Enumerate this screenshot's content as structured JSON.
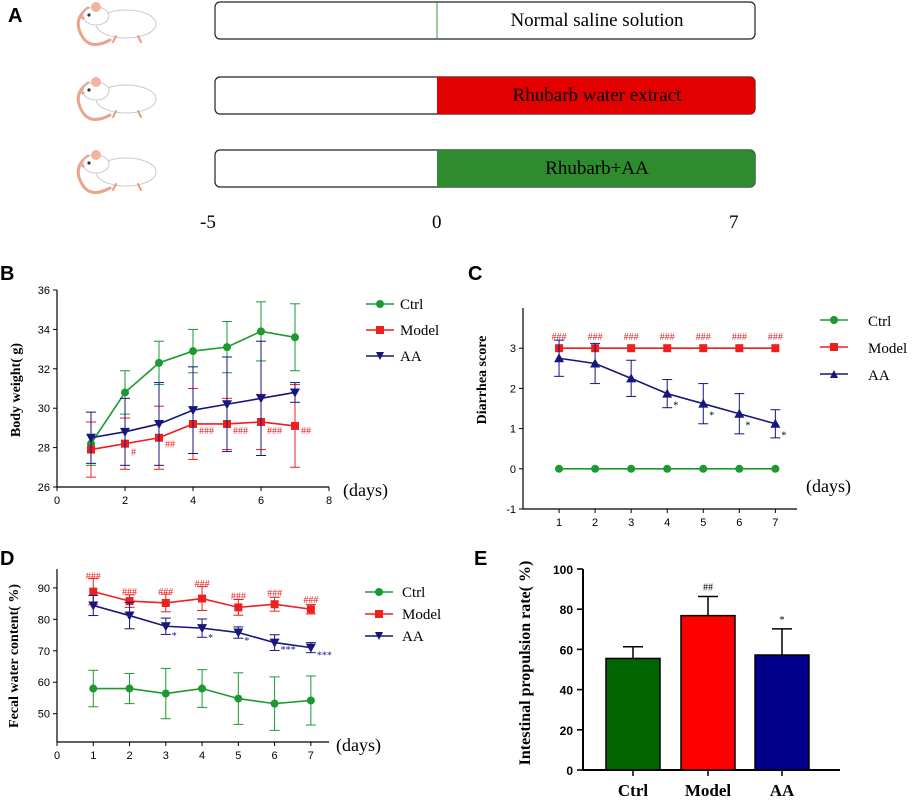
{
  "colors": {
    "ctrl": "#1a9a31",
    "model": "#ee1f1f",
    "aa": "#16167e",
    "barCtrl": "#006400",
    "barModel": "#ff0000",
    "barAA": "#00008b",
    "boxRed": "#e20000",
    "boxGreen": "#2e8b2e"
  },
  "panelA": {
    "label": "A",
    "treatments": [
      "Normal saline solution",
      "Rhubarb water extract",
      "Rhubarb+AA"
    ],
    "timeline": [
      -5,
      0,
      7
    ],
    "timeline_labels": [
      "-5",
      "0",
      "7"
    ],
    "mouse_icon": "mouse-icon"
  },
  "panelB": {
    "label": "B",
    "xunit": "(days)",
    "legend": [
      "Ctrl",
      "Model",
      "AA"
    ]
  },
  "panelC": {
    "label": "C",
    "xunit": "(days)",
    "legend": [
      "Ctrl",
      "Model",
      "AA"
    ]
  },
  "panelD": {
    "label": "D",
    "xunit": "(days)",
    "legend": [
      "Ctrl",
      "Model",
      "AA"
    ]
  },
  "panelE": {
    "label": "E"
  },
  "chart_data": [
    {
      "id": "B",
      "type": "line",
      "xlabel": "",
      "ylabel": "Body weight( g)",
      "xlim": [
        0,
        8
      ],
      "ylim": [
        26,
        36
      ],
      "xticks": [
        0,
        2,
        4,
        6,
        8
      ],
      "yticks": [
        26,
        28,
        30,
        32,
        34,
        36
      ],
      "x": [
        1,
        2,
        3,
        4,
        5,
        6,
        7
      ],
      "series": [
        {
          "name": "Ctrl",
          "values": [
            28.2,
            30.8,
            32.3,
            32.9,
            33.1,
            33.9,
            33.6
          ],
          "errors": [
            1.1,
            1.1,
            1.1,
            1.1,
            1.3,
            1.5,
            1.7
          ],
          "marker": "circle"
        },
        {
          "name": "Model",
          "values": [
            27.9,
            28.2,
            28.5,
            29.2,
            29.2,
            29.3,
            29.1
          ],
          "errors": [
            1.4,
            1.3,
            1.6,
            1.8,
            1.3,
            1.4,
            2.1
          ],
          "marker": "square"
        },
        {
          "name": "AA",
          "values": [
            28.5,
            28.8,
            29.2,
            29.9,
            30.2,
            30.5,
            30.8
          ],
          "errors": [
            1.3,
            1.7,
            2.1,
            2.2,
            2.4,
            2.9,
            0.5
          ],
          "marker": "triangle-down"
        }
      ],
      "annotations": [
        {
          "x": 2,
          "y": 27.8,
          "text": "#",
          "series": "Model"
        },
        {
          "x": 3,
          "y": 28.2,
          "text": "##",
          "series": "Model"
        },
        {
          "x": 4,
          "y": 28.9,
          "text": "###",
          "series": "Model"
        },
        {
          "x": 5,
          "y": 28.9,
          "text": "###",
          "series": "Model"
        },
        {
          "x": 6,
          "y": 28.9,
          "text": "###",
          "series": "Model"
        },
        {
          "x": 7,
          "y": 28.9,
          "text": "##",
          "series": "Model"
        }
      ]
    },
    {
      "id": "C",
      "type": "line",
      "xlabel": "",
      "ylabel": "Diarrhea score",
      "xlim": [
        0,
        7.6
      ],
      "ylim": [
        -1,
        4
      ],
      "xticks": [
        1,
        2,
        3,
        4,
        5,
        6,
        7
      ],
      "yticks": [
        -1,
        0,
        1,
        2,
        3
      ],
      "x": [
        1,
        2,
        3,
        4,
        5,
        6,
        7
      ],
      "series": [
        {
          "name": "Ctrl",
          "values": [
            0,
            0,
            0,
            0,
            0,
            0,
            0
          ],
          "errors": [
            0,
            0,
            0,
            0,
            0,
            0,
            0
          ],
          "marker": "circle"
        },
        {
          "name": "Model",
          "values": [
            3,
            3,
            3,
            3,
            3,
            3,
            3
          ],
          "errors": [
            0,
            0,
            0,
            0,
            0,
            0,
            0
          ],
          "marker": "square"
        },
        {
          "name": "AA",
          "values": [
            2.75,
            2.62,
            2.25,
            1.87,
            1.62,
            1.37,
            1.12
          ],
          "errors": [
            0.45,
            0.5,
            0.45,
            0.35,
            0.5,
            0.5,
            0.35
          ],
          "marker": "triangle-up"
        }
      ],
      "annotations": [
        {
          "x": 1,
          "y": 3.3,
          "text": "###",
          "series": "Model"
        },
        {
          "x": 2,
          "y": 3.3,
          "text": "###",
          "series": "Model"
        },
        {
          "x": 3,
          "y": 3.3,
          "text": "###",
          "series": "Model"
        },
        {
          "x": 4,
          "y": 3.3,
          "text": "###",
          "series": "Model"
        },
        {
          "x": 5,
          "y": 3.3,
          "text": "###",
          "series": "Model"
        },
        {
          "x": 6,
          "y": 3.3,
          "text": "###",
          "series": "Model"
        },
        {
          "x": 7,
          "y": 3.3,
          "text": "###",
          "series": "Model"
        },
        {
          "x": 4,
          "y": 1.6,
          "text": "*",
          "series": "AA"
        },
        {
          "x": 5,
          "y": 1.35,
          "text": "*",
          "series": "AA"
        },
        {
          "x": 6,
          "y": 1.1,
          "text": "*",
          "series": "AA"
        },
        {
          "x": 7,
          "y": 0.85,
          "text": "*",
          "series": "AA"
        }
      ]
    },
    {
      "id": "D",
      "type": "line",
      "xlabel": "",
      "ylabel": "Fecal water content( %)",
      "xlim": [
        0,
        7.5
      ],
      "ylim": [
        41,
        96
      ],
      "xticks": [
        0,
        1,
        2,
        3,
        4,
        5,
        6,
        7
      ],
      "yticks": [
        50,
        60,
        70,
        80,
        90
      ],
      "x": [
        1,
        2,
        3,
        4,
        5,
        6,
        7
      ],
      "series": [
        {
          "name": "Ctrl",
          "values": [
            58,
            58,
            56.4,
            58,
            54.8,
            53.2,
            54.2
          ],
          "errors": [
            5.8,
            4.8,
            8.0,
            6.0,
            8.2,
            8.5,
            7.8
          ],
          "marker": "circle"
        },
        {
          "name": "Model",
          "values": [
            88.8,
            85.8,
            85.2,
            86.6,
            83.8,
            84.8,
            83.2
          ],
          "errors": [
            4.2,
            2.0,
            2.8,
            3.8,
            2.5,
            2.2,
            1.5
          ],
          "marker": "square"
        },
        {
          "name": "AA",
          "values": [
            84.4,
            81.2,
            77.8,
            77.2,
            75.8,
            72.6,
            71
          ],
          "errors": [
            3.2,
            4.2,
            2.6,
            2.9,
            1.8,
            2.5,
            1.6
          ],
          "marker": "triangle-down"
        }
      ],
      "annotations": [
        {
          "x": 1,
          "y": 94,
          "text": "###",
          "series": "Model"
        },
        {
          "x": 2,
          "y": 89,
          "text": "###",
          "series": "Model"
        },
        {
          "x": 3,
          "y": 89,
          "text": "###",
          "series": "Model"
        },
        {
          "x": 4,
          "y": 91.5,
          "text": "###",
          "series": "Model"
        },
        {
          "x": 5,
          "y": 87.5,
          "text": "###",
          "series": "Model"
        },
        {
          "x": 6,
          "y": 88.5,
          "text": "###",
          "series": "Model"
        },
        {
          "x": 7,
          "y": 86.5,
          "text": "###",
          "series": "Model"
        },
        {
          "x": 3,
          "y": 75,
          "text": "*",
          "series": "AA"
        },
        {
          "x": 4,
          "y": 74.4,
          "text": "*",
          "series": "AA"
        },
        {
          "x": 5,
          "y": 73.5,
          "text": "*",
          "series": "AA"
        },
        {
          "x": 6,
          "y": 70.6,
          "text": "***",
          "series": "AA"
        },
        {
          "x": 7,
          "y": 68.8,
          "text": "***",
          "series": "AA"
        }
      ]
    },
    {
      "id": "E",
      "type": "bar",
      "ylabel": "Intestinal propulsion rate( %)",
      "categories": [
        "Ctrl",
        "Model",
        "AA"
      ],
      "values": [
        55.5,
        76.8,
        57.2
      ],
      "errors": [
        5.8,
        9.5,
        13.0
      ],
      "ylim": [
        0,
        100
      ],
      "yticks": [
        0,
        20,
        40,
        60,
        80,
        100
      ],
      "annotations": [
        {
          "category": "Model",
          "text": "##"
        },
        {
          "category": "AA",
          "text": "*"
        }
      ]
    }
  ]
}
